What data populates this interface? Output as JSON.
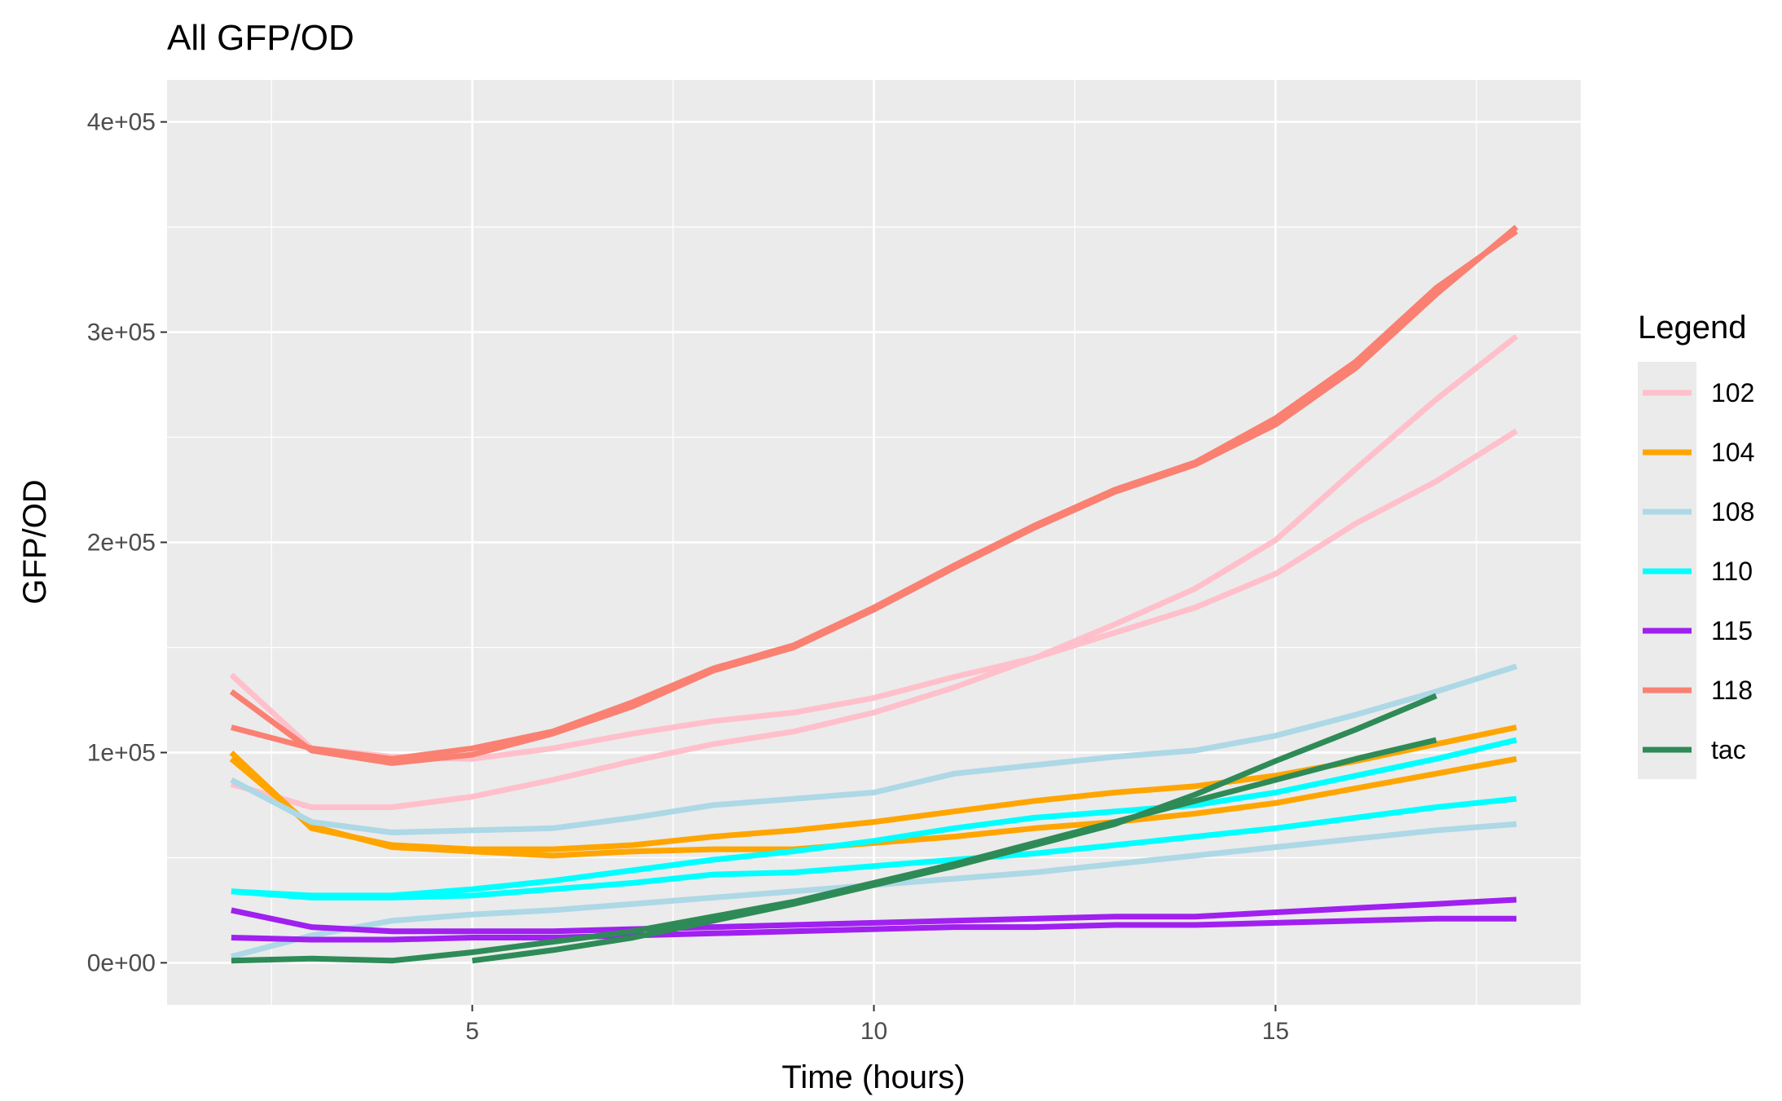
{
  "chart_data": {
    "type": "line",
    "title": "All GFP/OD",
    "xlabel": "Time (hours)",
    "ylabel": "GFP/OD",
    "xlim": [
      1.2,
      18.8
    ],
    "ylim": [
      -20000,
      420000
    ],
    "x_ticks": [
      5,
      10,
      15
    ],
    "x_tick_labels": [
      "5",
      "10",
      "15"
    ],
    "x_minor_ticks": [
      2.5,
      7.5,
      12.5,
      17.5
    ],
    "y_ticks": [
      0,
      100000,
      200000,
      300000,
      400000
    ],
    "y_tick_labels": [
      "0e+00",
      "1e+05",
      "2e+05",
      "3e+05",
      "4e+05"
    ],
    "y_minor_ticks": [
      50000,
      150000,
      250000,
      350000
    ],
    "grid": true,
    "background": "#ebebeb",
    "legend_title": "Legend",
    "legend_position": "right",
    "legend": [
      {
        "label": "102",
        "color": "#ffc0cb"
      },
      {
        "label": "104",
        "color": "#ffa500"
      },
      {
        "label": "108",
        "color": "#add8e6"
      },
      {
        "label": "110",
        "color": "#00ffff"
      },
      {
        "label": "115",
        "color": "#a020f0"
      },
      {
        "label": "118",
        "color": "#fa8072"
      },
      {
        "label": "tac",
        "color": "#2e8b57"
      }
    ],
    "series": [
      {
        "group": "102",
        "color": "#ffc0cb",
        "x": [
          2,
          3,
          4,
          5,
          6,
          7,
          8,
          9,
          10,
          11,
          12,
          13,
          14,
          15,
          16,
          17,
          18
        ],
        "y": [
          137000,
          102000,
          98000,
          97000,
          102000,
          109000,
          115000,
          119000,
          126000,
          136000,
          145000,
          157000,
          169000,
          185000,
          209000,
          229000,
          253000
        ]
      },
      {
        "group": "102",
        "color": "#ffc0cb",
        "x": [
          2,
          3,
          4,
          5,
          6,
          7,
          8,
          9,
          10,
          11,
          12,
          13,
          14,
          15,
          16,
          17,
          18
        ],
        "y": [
          85000,
          74000,
          74000,
          79000,
          87000,
          96000,
          104000,
          110000,
          119000,
          131000,
          145000,
          161000,
          178000,
          201000,
          235000,
          268000,
          298000
        ]
      },
      {
        "group": "104",
        "color": "#ffa500",
        "x": [
          2,
          3,
          4,
          5,
          6,
          7,
          8,
          9,
          10,
          11,
          12,
          13,
          14,
          15,
          16,
          17,
          18
        ],
        "y": [
          100000,
          64000,
          56000,
          54000,
          54000,
          56000,
          60000,
          63000,
          67000,
          72000,
          77000,
          81000,
          84000,
          89000,
          96000,
          104000,
          112000
        ]
      },
      {
        "group": "104",
        "color": "#ffa500",
        "x": [
          2,
          3,
          4,
          5,
          6,
          7,
          8,
          9,
          10,
          11,
          12,
          13,
          14,
          15,
          16,
          17,
          18
        ],
        "y": [
          97000,
          65000,
          55000,
          53000,
          51000,
          53000,
          54000,
          54000,
          57000,
          60000,
          64000,
          67000,
          71000,
          76000,
          83000,
          90000,
          97000
        ]
      },
      {
        "group": "108",
        "color": "#add8e6",
        "x": [
          2,
          3,
          4,
          5,
          6,
          7,
          8,
          9,
          10,
          11,
          12,
          13,
          14,
          15,
          16,
          17,
          18
        ],
        "y": [
          87000,
          67000,
          62000,
          63000,
          64000,
          69000,
          75000,
          78000,
          81000,
          90000,
          94000,
          98000,
          101000,
          108000,
          118000,
          129000,
          141000
        ]
      },
      {
        "group": "108",
        "color": "#add8e6",
        "x": [
          2,
          3,
          4,
          5,
          6,
          7,
          8,
          9,
          10,
          11,
          12,
          13,
          14,
          15,
          16,
          17,
          18
        ],
        "y": [
          3000,
          13000,
          20000,
          23000,
          25000,
          28000,
          31000,
          34000,
          37000,
          40000,
          43000,
          47000,
          51000,
          55000,
          59000,
          63000,
          66000
        ]
      },
      {
        "group": "110",
        "color": "#00ffff",
        "x": [
          2,
          3,
          4,
          5,
          6,
          7,
          8,
          9,
          10,
          11,
          12,
          13,
          14,
          15,
          16,
          17,
          18
        ],
        "y": [
          34000,
          32000,
          32000,
          35000,
          39000,
          44000,
          49000,
          53000,
          58000,
          64000,
          69000,
          72000,
          75000,
          81000,
          89000,
          97000,
          106000
        ]
      },
      {
        "group": "110",
        "color": "#00ffff",
        "x": [
          2,
          3,
          4,
          5,
          6,
          7,
          8,
          9,
          10,
          11,
          12,
          13,
          14,
          15,
          16,
          17,
          18
        ],
        "y": [
          34000,
          31000,
          31000,
          32000,
          35000,
          38000,
          42000,
          43000,
          46000,
          49000,
          52000,
          56000,
          60000,
          64000,
          69000,
          74000,
          78000
        ]
      },
      {
        "group": "115",
        "color": "#a020f0",
        "x": [
          2,
          3,
          4,
          5,
          6,
          7,
          8,
          9,
          10,
          11,
          12,
          13,
          14,
          15,
          16,
          17,
          18
        ],
        "y": [
          25000,
          17000,
          15000,
          15000,
          15000,
          16000,
          17000,
          18000,
          19000,
          20000,
          21000,
          22000,
          22000,
          24000,
          26000,
          28000,
          30000
        ]
      },
      {
        "group": "115",
        "color": "#a020f0",
        "x": [
          2,
          3,
          4,
          5,
          6,
          7,
          8,
          9,
          10,
          11,
          12,
          13,
          14,
          15,
          16,
          17,
          18
        ],
        "y": [
          12000,
          11000,
          11000,
          12000,
          12000,
          13000,
          14000,
          15000,
          16000,
          17000,
          17000,
          18000,
          18000,
          19000,
          20000,
          21000,
          21000
        ]
      },
      {
        "group": "118",
        "color": "#fa8072",
        "x": [
          2,
          3,
          4,
          5,
          6,
          7,
          8,
          9,
          10,
          11,
          12,
          13,
          14,
          15,
          16,
          17,
          18
        ],
        "y": [
          129000,
          101000,
          95000,
          99000,
          109000,
          122000,
          139000,
          150000,
          168000,
          188000,
          207000,
          224000,
          237000,
          256000,
          283000,
          318000,
          350000
        ]
      },
      {
        "group": "118",
        "color": "#fa8072",
        "x": [
          2,
          3,
          4,
          5,
          6,
          7,
          8,
          9,
          10,
          11,
          12,
          13,
          14,
          15,
          16,
          17,
          18
        ],
        "y": [
          112000,
          102000,
          97000,
          102000,
          110000,
          124000,
          140000,
          151000,
          169000,
          189000,
          208000,
          225000,
          238000,
          259000,
          286000,
          321000,
          348000
        ]
      },
      {
        "group": "tac",
        "color": "#2e8b57",
        "x": [
          2,
          3,
          4,
          5,
          6,
          7,
          8,
          9,
          10,
          11,
          12,
          13,
          14,
          15,
          16,
          17
        ],
        "y": [
          1000,
          2000,
          1000,
          5000,
          10000,
          15000,
          22000,
          29000,
          38000,
          47000,
          57000,
          67000,
          77000,
          87000,
          97000,
          106000
        ]
      },
      {
        "group": "tac",
        "color": "#2e8b57",
        "x": [
          5,
          6,
          7,
          8,
          9,
          10,
          11,
          12,
          13,
          14,
          15,
          16,
          17
        ],
        "y": [
          1000,
          6000,
          12000,
          20000,
          28000,
          37000,
          46000,
          56000,
          66000,
          80000,
          96000,
          111000,
          127000
        ]
      }
    ]
  }
}
